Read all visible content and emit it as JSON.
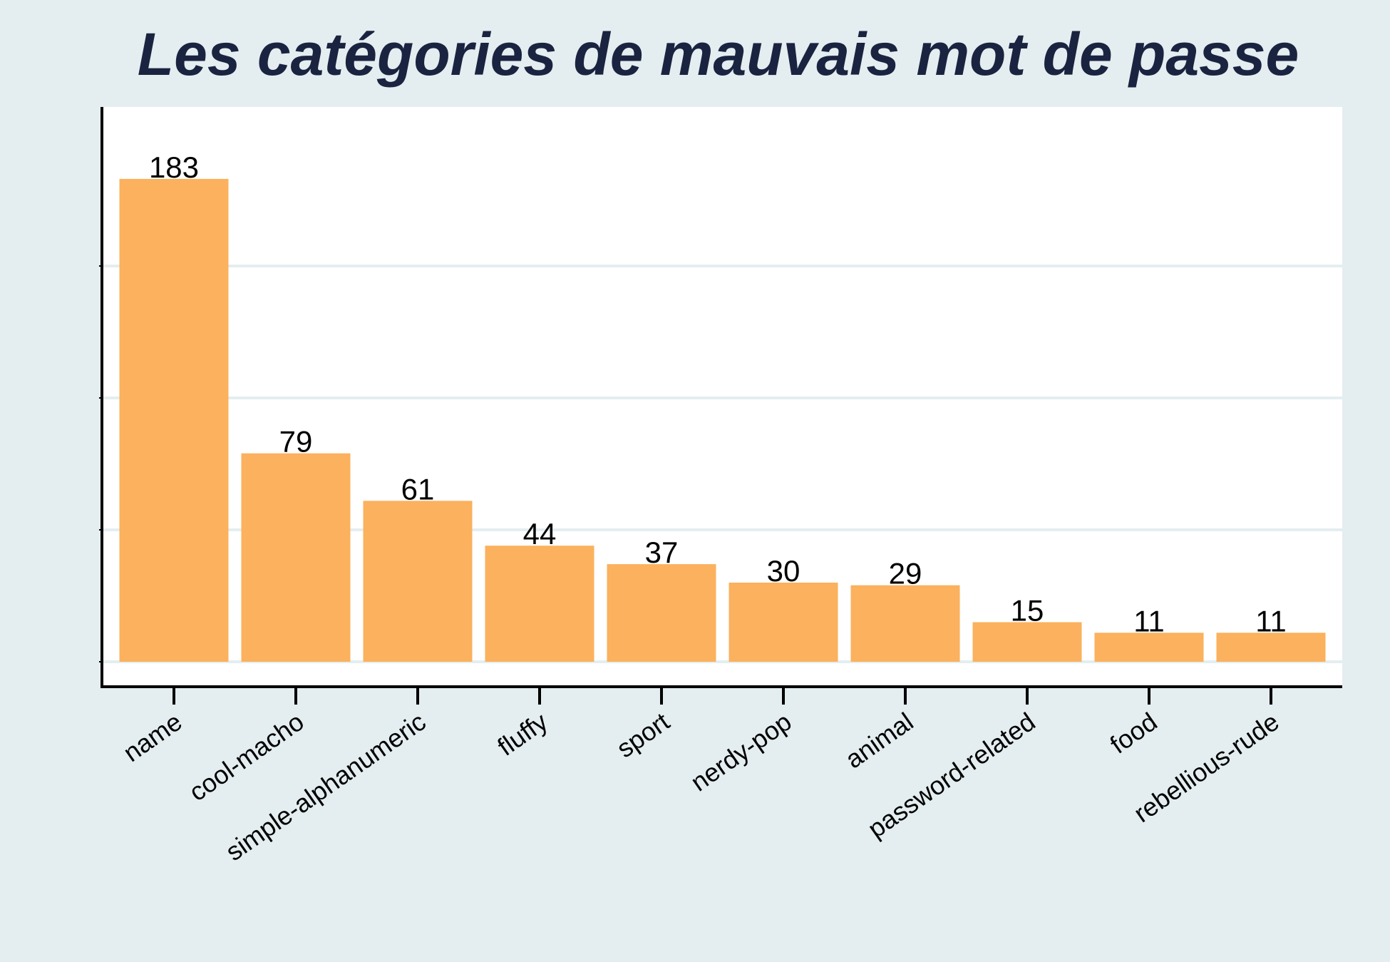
{
  "chart_data": {
    "type": "bar",
    "title": "Les catégories de mauvais mot de passe",
    "xlabel": "",
    "ylabel": "",
    "categories": [
      "name",
      "cool-macho",
      "simple-alphanumeric",
      "fluffy",
      "sport",
      "nerdy-pop",
      "animal",
      "password-related",
      "food",
      "rebellious-rude"
    ],
    "values": [
      183,
      79,
      61,
      44,
      37,
      30,
      29,
      15,
      11,
      11
    ],
    "ylim": [
      0,
      200
    ],
    "grid": true,
    "bar_color": "#fbb15d",
    "plot_background": "#ffffff",
    "page_background": "#e4eef0",
    "title_color": "#1a2340",
    "grid_color": "#e4eef0"
  }
}
